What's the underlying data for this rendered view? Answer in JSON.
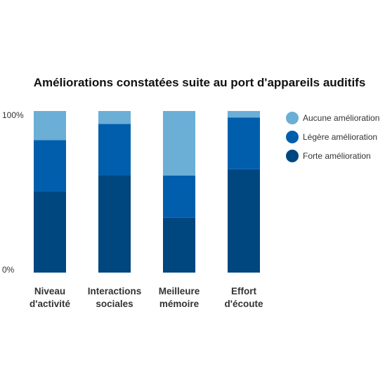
{
  "chart_data": {
    "type": "bar",
    "stacked": true,
    "normalized": true,
    "title": "Améliorations constatées suite au port d'appareils auditifs",
    "xlabel": "",
    "ylabel": "",
    "ylim": [
      0,
      100
    ],
    "y_ticks": [
      "0%",
      "100%"
    ],
    "grid": false,
    "legend_position": "right",
    "categories": [
      [
        "Niveau",
        "d'activité"
      ],
      [
        "Interactions",
        "sociales"
      ],
      [
        "Meilleure",
        "mémoire"
      ],
      [
        "Effort",
        "d'écoute"
      ]
    ],
    "series": [
      {
        "name": "Forte amélioration",
        "color": "#00467f",
        "values": [
          50,
          60,
          34,
          64
        ]
      },
      {
        "name": "Légère amélioration",
        "color": "#005ead",
        "values": [
          32,
          32,
          26,
          32
        ]
      },
      {
        "name": "Aucune amélioration",
        "color": "#6baed6",
        "values": [
          18,
          8,
          40,
          4
        ]
      }
    ],
    "legend_order": [
      "Aucune amélioration",
      "Légère amélioration",
      "Forte amélioration"
    ]
  }
}
